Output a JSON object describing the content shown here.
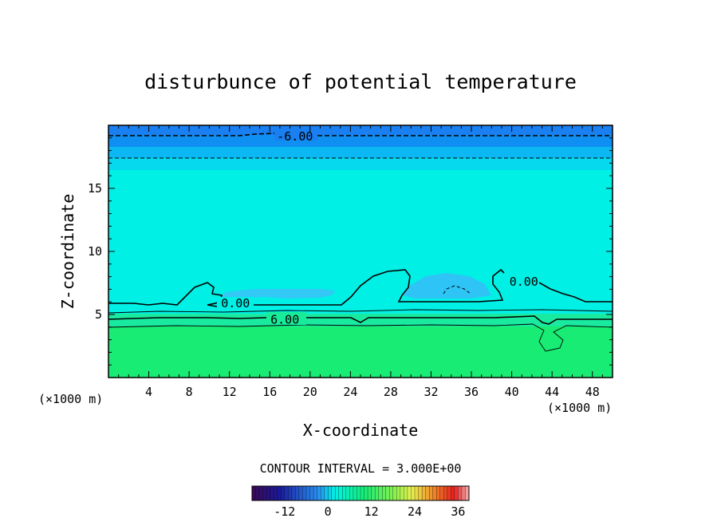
{
  "chart_data": {
    "type": "heatmap",
    "title": "disturbunce of potential temperature",
    "xlabel": "X-coordinate",
    "ylabel": "Z-coordinate",
    "x_unit_left": "(×1000 m)",
    "x_unit_right": "(×1000 m)",
    "xlim": [
      0,
      50
    ],
    "ylim": [
      0,
      20
    ],
    "x_ticks": [
      4,
      8,
      12,
      16,
      20,
      24,
      28,
      32,
      36,
      40,
      44,
      48
    ],
    "y_ticks": [
      5,
      10,
      15
    ],
    "contour_interval_text": "CONTOUR INTERVAL = 3.000E+00",
    "contour_labels": [
      {
        "text": "-6.00",
        "x": 18.5,
        "z": 19.1
      },
      {
        "text": "0.00",
        "x": 12.6,
        "z": 5.9
      },
      {
        "text": "6.00",
        "x": 17.5,
        "z": 4.6
      },
      {
        "text": "0.00",
        "x": 41.2,
        "z": 7.6
      }
    ],
    "colorbar": {
      "min": -21,
      "max": 39,
      "ticks": [
        "-12",
        "0",
        "12",
        "24",
        "36"
      ],
      "tick_values": [
        -12,
        0,
        12,
        24,
        36
      ]
    },
    "grid": false
  },
  "colors": {
    "top_layer": "#1a7ff0",
    "upper_band": "#0fbcf2",
    "middle_layer": "#00f0e6",
    "low_layer": "#18ec74",
    "cloud_patch": "#33c8f5"
  }
}
